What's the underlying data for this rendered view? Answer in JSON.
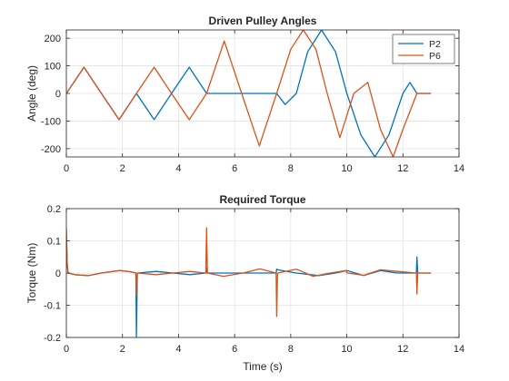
{
  "chart_data": [
    {
      "type": "line",
      "title": "Driven Pulley Angles",
      "xlabel": "",
      "ylabel": "Angle (deg)",
      "xlim": [
        0,
        14
      ],
      "ylim": [
        -230,
        230
      ],
      "xticks": [
        0,
        2,
        4,
        6,
        8,
        10,
        12,
        14
      ],
      "yticks": [
        -200,
        -100,
        0,
        100,
        200
      ],
      "grid": true,
      "legend": {
        "placement": "top-right",
        "entries": [
          "P2",
          "P6"
        ]
      },
      "series": [
        {
          "name": "P2",
          "color": "#0072BD",
          "x": [
            0,
            0.63,
            1.25,
            1.88,
            2.5,
            3.13,
            3.75,
            4.38,
            5.0,
            7.5,
            7.8,
            8.2,
            8.6,
            9.1,
            9.6,
            10.0,
            10.5,
            11.0,
            11.5,
            12.0,
            12.25,
            12.5,
            13.0
          ],
          "y": [
            0,
            95,
            0,
            -95,
            0,
            -95,
            0,
            95,
            0,
            0,
            -40,
            0,
            150,
            230,
            150,
            0,
            -150,
            -230,
            -150,
            0,
            40,
            0,
            0
          ]
        },
        {
          "name": "P6",
          "color": "#D95319",
          "x": [
            0,
            0.63,
            1.25,
            1.88,
            2.5,
            3.13,
            3.75,
            4.38,
            5.0,
            5.63,
            6.25,
            6.88,
            7.5,
            8.0,
            8.45,
            8.9,
            9.3,
            9.75,
            10.25,
            10.75,
            11.2,
            11.65,
            12.0,
            12.5,
            13.0
          ],
          "y": [
            0,
            95,
            0,
            -95,
            0,
            95,
            0,
            -95,
            0,
            190,
            0,
            -190,
            0,
            160,
            230,
            160,
            0,
            -160,
            0,
            40,
            -130,
            -230,
            -130,
            0,
            0
          ]
        }
      ]
    },
    {
      "type": "line",
      "title": "Required Torque",
      "xlabel": "Time (s)",
      "ylabel": "Torque (Nm)",
      "xlim": [
        0,
        14
      ],
      "ylim": [
        -0.2,
        0.2
      ],
      "xticks": [
        0,
        2,
        4,
        6,
        8,
        10,
        12,
        14
      ],
      "yticks": [
        -0.2,
        -0.1,
        0,
        0.1,
        0.2
      ],
      "ytick_labels": [
        "-0.2",
        "-0.1",
        "0",
        "0.1",
        "0.2"
      ],
      "grid": true,
      "series": [
        {
          "name": "P2",
          "color": "#0072BD",
          "x": [
            0,
            0.03,
            0.06,
            0.3,
            0.8,
            1.25,
            1.9,
            2.3,
            2.48,
            2.5,
            2.53,
            3.2,
            3.8,
            4.4,
            4.98,
            5.0,
            5.03,
            6.2,
            7.0,
            7.48,
            7.5,
            7.53,
            8.2,
            9.0,
            9.6,
            10.0,
            10.6,
            11.2,
            11.8,
            12.48,
            12.5,
            12.53,
            13.0
          ],
          "y": [
            0.12,
            0.03,
            0.0,
            -0.005,
            -0.008,
            0,
            0.008,
            0.004,
            0,
            -0.2,
            0,
            0.005,
            0,
            -0.005,
            0,
            0.015,
            0,
            0,
            0,
            0,
            0.012,
            0.01,
            0,
            -0.008,
            0,
            0.008,
            -0.008,
            0.008,
            0,
            0,
            0.05,
            0,
            0
          ]
        },
        {
          "name": "P6",
          "color": "#D95319",
          "x": [
            0,
            0.03,
            0.06,
            0.3,
            0.8,
            1.25,
            1.9,
            2.3,
            2.48,
            2.5,
            2.53,
            3.2,
            3.8,
            4.4,
            4.97,
            5.0,
            5.03,
            5.6,
            6.3,
            6.9,
            7.48,
            7.5,
            7.53,
            8.2,
            8.8,
            9.4,
            9.98,
            10.0,
            10.03,
            10.6,
            11.2,
            11.8,
            12.48,
            12.5,
            12.53,
            13.0
          ],
          "y": [
            0.14,
            0.03,
            0.0,
            -0.005,
            -0.008,
            0,
            0.008,
            0.004,
            0,
            -0.07,
            0,
            -0.005,
            0,
            0.005,
            0,
            0.14,
            0,
            -0.01,
            0,
            0.013,
            0,
            -0.135,
            0,
            0.012,
            -0.01,
            0,
            0.008,
            0,
            0,
            -0.007,
            0.01,
            0.005,
            0,
            -0.065,
            0,
            0
          ]
        }
      ]
    }
  ]
}
